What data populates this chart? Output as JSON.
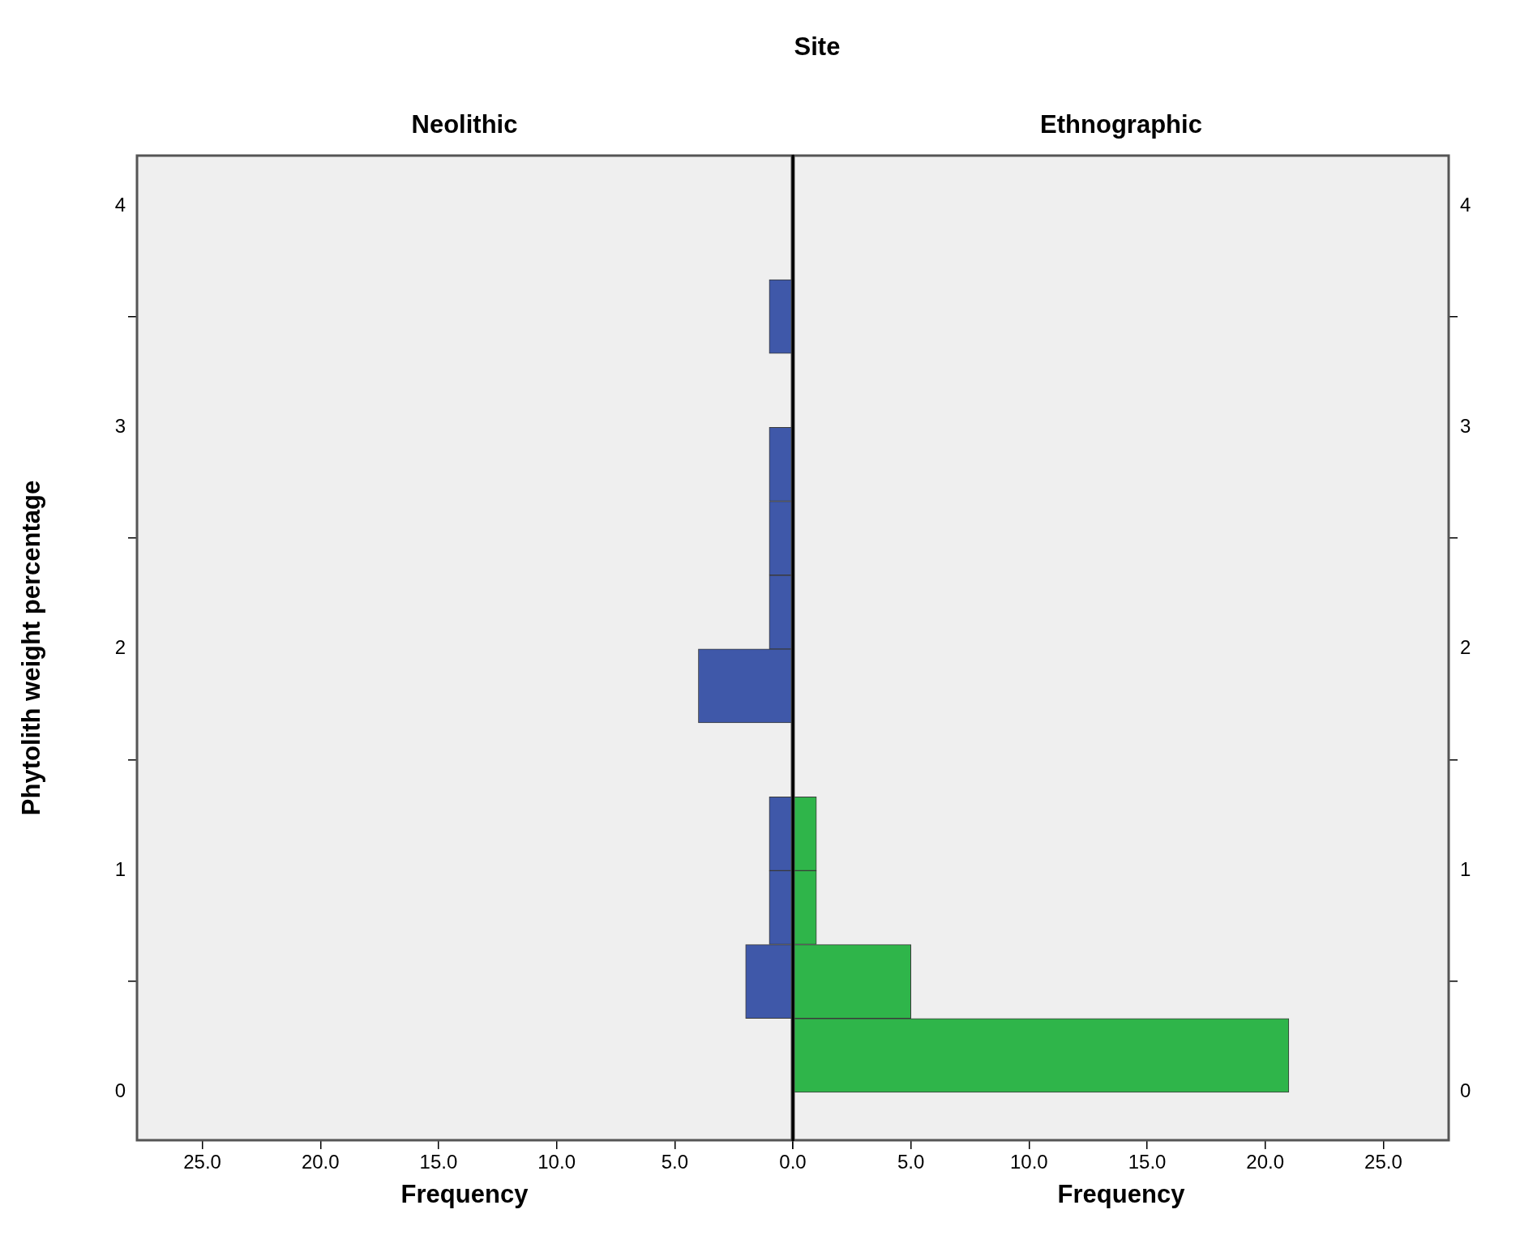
{
  "chart_data": [
    {
      "type": "histogram",
      "title": "Neolithic",
      "ylabel": "Phytolith weight percentage",
      "xlabel": "Frequency",
      "annotations": [
        "Site"
      ],
      "orientation": "horizontal",
      "color": "#3f58a9",
      "bins": [
        0,
        0.333,
        0.667,
        1,
        1.333,
        1.667,
        2,
        2.333,
        2.667,
        3,
        3.333,
        3.667
      ],
      "values": [
        0,
        2,
        1,
        1,
        0,
        4,
        1,
        1,
        1,
        0,
        1
      ],
      "xlim": [
        27.8,
        0
      ],
      "xticks": [
        {
          "value": 25,
          "label": "25.0"
        },
        {
          "value": 20,
          "label": "20.0"
        },
        {
          "value": 15,
          "label": "15.0"
        },
        {
          "value": 10,
          "label": "10.0"
        },
        {
          "value": 5,
          "label": "5.0"
        },
        {
          "value": 0,
          "label": "0.0"
        }
      ],
      "ylim": [
        -0.22,
        4.23
      ],
      "yticks": [
        0,
        1,
        2,
        3,
        4
      ]
    },
    {
      "type": "histogram",
      "title": "Ethnographic",
      "xlabel": "Frequency",
      "orientation": "horizontal",
      "color": "#2fb54a",
      "bins": [
        0,
        0.333,
        0.667,
        1,
        1.333,
        1.667,
        2,
        2.333,
        2.667,
        3,
        3.333,
        3.667
      ],
      "values": [
        21,
        5,
        1,
        1,
        0,
        0,
        0,
        0,
        0,
        0,
        0
      ],
      "xlim": [
        0,
        27.8
      ],
      "xticks": [
        {
          "value": 0,
          "label": null
        },
        {
          "value": 5,
          "label": "5.0"
        },
        {
          "value": 10,
          "label": "10.0"
        },
        {
          "value": 15,
          "label": "15.0"
        },
        {
          "value": 20,
          "label": "20.0"
        },
        {
          "value": 25,
          "label": "25.0"
        }
      ],
      "ylim": [
        -0.22,
        4.23
      ],
      "yticks": [
        0,
        1,
        2,
        3,
        4
      ]
    }
  ]
}
